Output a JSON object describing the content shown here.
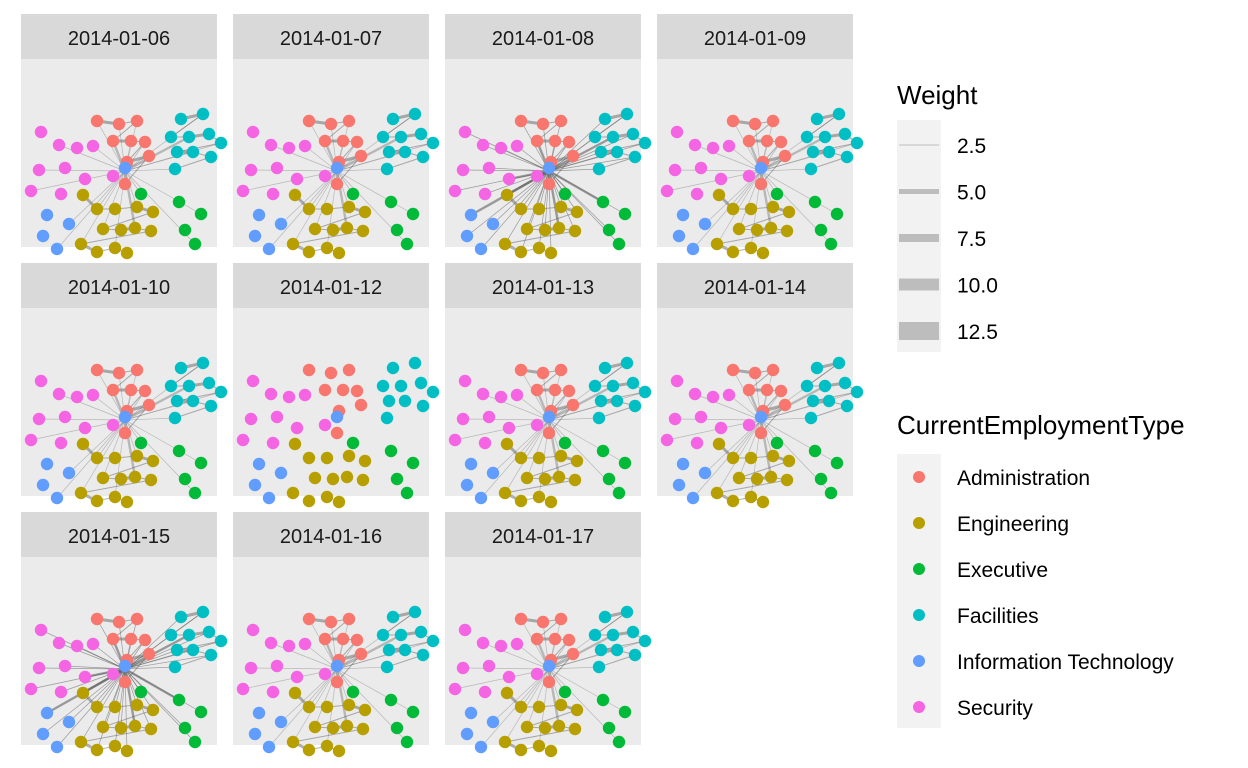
{
  "chart_data": {
    "type": "network-facets",
    "facets": [
      "2014-01-06",
      "2014-01-07",
      "2014-01-08",
      "2014-01-09",
      "2014-01-10",
      "2014-01-12",
      "2014-01-13",
      "2014-01-14",
      "2014-01-15",
      "2014-01-16",
      "2014-01-17"
    ],
    "legend_weight": {
      "title": "Weight",
      "entries": [
        "2.5",
        "5.0",
        "7.5",
        "10.0",
        "12.5"
      ],
      "values": [
        2.5,
        5.0,
        7.5,
        10.0,
        12.5
      ]
    },
    "legend_type": {
      "title": "CurrentEmploymentType",
      "entries": [
        {
          "name": "Administration",
          "color": "#F8766D"
        },
        {
          "name": "Engineering",
          "color": "#B79F00"
        },
        {
          "name": "Executive",
          "color": "#00BA38"
        },
        {
          "name": "Facilities",
          "color": "#00BFC4"
        },
        {
          "name": "Information Technology",
          "color": "#619CFF"
        },
        {
          "name": "Security",
          "color": "#F564E3"
        }
      ]
    },
    "panel_background": "#EBEBEB",
    "strip_background": "#D9D9D9",
    "edge_color": "#555555"
  }
}
